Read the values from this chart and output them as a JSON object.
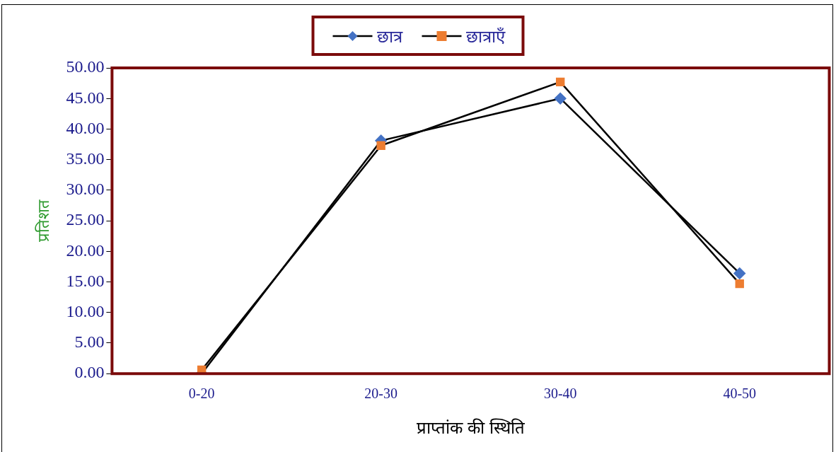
{
  "chart_data": {
    "type": "line",
    "xlabel": "प्राप्तांक की स्थिति",
    "ylabel": "प्रतिशत",
    "categories": [
      "0-20",
      "20-30",
      "30-40",
      "40-50"
    ],
    "series": [
      {
        "name": "छात्र",
        "color": "#4472c4",
        "marker": "diamond",
        "values": [
          0.0,
          38.1,
          45.0,
          16.4
        ]
      },
      {
        "name": "छात्राएँ",
        "color": "#ed7d31",
        "marker": "square",
        "values": [
          0.6,
          37.3,
          47.7,
          14.7
        ]
      }
    ],
    "ylim": [
      0,
      50
    ],
    "yticks": [
      {
        "value": 0,
        "label": "0.00"
      },
      {
        "value": 5,
        "label": "5.00"
      },
      {
        "value": 10,
        "label": "10.00"
      },
      {
        "value": 15,
        "label": "15.00"
      },
      {
        "value": 20,
        "label": "20.00"
      },
      {
        "value": 25,
        "label": "25.00"
      },
      {
        "value": 30,
        "label": "30.00"
      },
      {
        "value": 35,
        "label": "35.00"
      },
      {
        "value": 40,
        "label": "40.00"
      },
      {
        "value": 45,
        "label": "45.00"
      },
      {
        "value": 50,
        "label": "50.00"
      }
    ],
    "grid": false,
    "legend": "top"
  }
}
